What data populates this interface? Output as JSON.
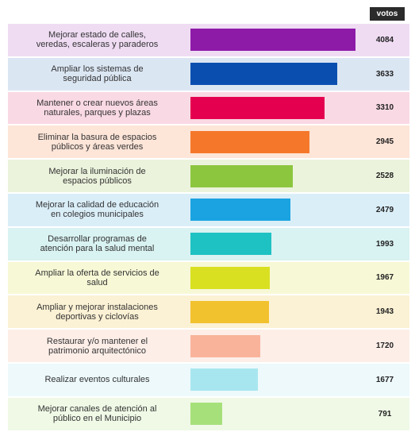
{
  "chart_data": {
    "type": "bar",
    "orientation": "horizontal",
    "header_label": "votos",
    "categories": [
      "Mejorar estado de calles,\nveredas, escaleras y paraderos",
      "Ampliar los sistemas de\nseguridad pública",
      "Mantener o crear nuevos áreas\nnaturales, parques y plazas",
      "Eliminar la basura de espacios\npúblicos y áreas verdes",
      "Mejorar la iluminación de\nespacios públicos",
      "Mejorar la calidad de educación\nen colegios municipales",
      "Desarrollar programas de\natención para la salud mental",
      "Ampliar la oferta de servicios de\nsalud",
      "Ampliar y mejorar instalaciones\ndeportivas y ciclovías",
      "Restaurar y/o mantener el\npatrimonio arquitectónico",
      "Realizar eventos culturales",
      "Mejorar canales de atención al\npúblico en el Municipio"
    ],
    "values": [
      4084,
      3633,
      3310,
      2945,
      2528,
      2479,
      1993,
      1967,
      1943,
      1720,
      1677,
      791
    ],
    "colors": [
      "#8e1aa8",
      "#0a4fb0",
      "#e5004f",
      "#f5782a",
      "#8cc63f",
      "#1aa3e0",
      "#1fc2c2",
      "#d9e021",
      "#f2c12e",
      "#f9b39a",
      "#a8e6ef",
      "#a6e07a"
    ],
    "background_colors": [
      "#efdcf3",
      "#dbe6f3",
      "#f9d9e4",
      "#fde5d8",
      "#ebf3dc",
      "#daeef8",
      "#d9f2f2",
      "#f7f8d6",
      "#fbf1d4",
      "#fdeee8",
      "#edf9fb",
      "#eff9e6"
    ]
  }
}
